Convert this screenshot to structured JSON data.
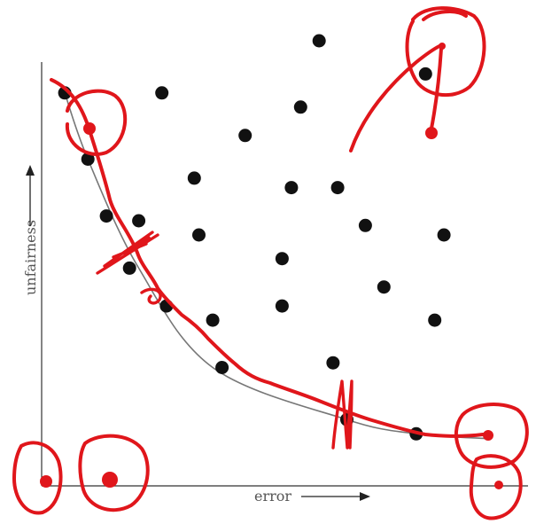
{
  "chart_data": {
    "type": "scatter",
    "xlabel": "error",
    "ylabel": "unfairness",
    "xlim": [
      0,
      100
    ],
    "ylim": [
      0,
      100
    ],
    "points": [
      {
        "x": 60,
        "y": 94
      },
      {
        "x": 83,
        "y": 87
      },
      {
        "x": 5,
        "y": 83
      },
      {
        "x": 26,
        "y": 83
      },
      {
        "x": 56,
        "y": 80
      },
      {
        "x": 44,
        "y": 74
      },
      {
        "x": 10,
        "y": 69
      },
      {
        "x": 33,
        "y": 65
      },
      {
        "x": 54,
        "y": 63
      },
      {
        "x": 64,
        "y": 63
      },
      {
        "x": 14,
        "y": 57
      },
      {
        "x": 21,
        "y": 56
      },
      {
        "x": 70,
        "y": 55
      },
      {
        "x": 34,
        "y": 53
      },
      {
        "x": 87,
        "y": 53
      },
      {
        "x": 52,
        "y": 48
      },
      {
        "x": 19,
        "y": 46
      },
      {
        "x": 74,
        "y": 42
      },
      {
        "x": 27,
        "y": 38
      },
      {
        "x": 52,
        "y": 38
      },
      {
        "x": 37,
        "y": 35
      },
      {
        "x": 85,
        "y": 35
      },
      {
        "x": 63,
        "y": 26
      },
      {
        "x": 39,
        "y": 25
      },
      {
        "x": 66,
        "y": 14
      },
      {
        "x": 81,
        "y": 11
      }
    ],
    "frontier": [
      [
        5,
        83
      ],
      [
        10,
        69
      ],
      [
        21,
        46
      ],
      [
        37,
        25
      ],
      [
        66,
        14
      ],
      [
        81,
        11
      ],
      [
        96,
        10
      ]
    ]
  },
  "annotations": {
    "ink_color": "#e0161b",
    "pen_circles": 6,
    "pen_arrows": 2,
    "pen_cross_marks": 2
  }
}
